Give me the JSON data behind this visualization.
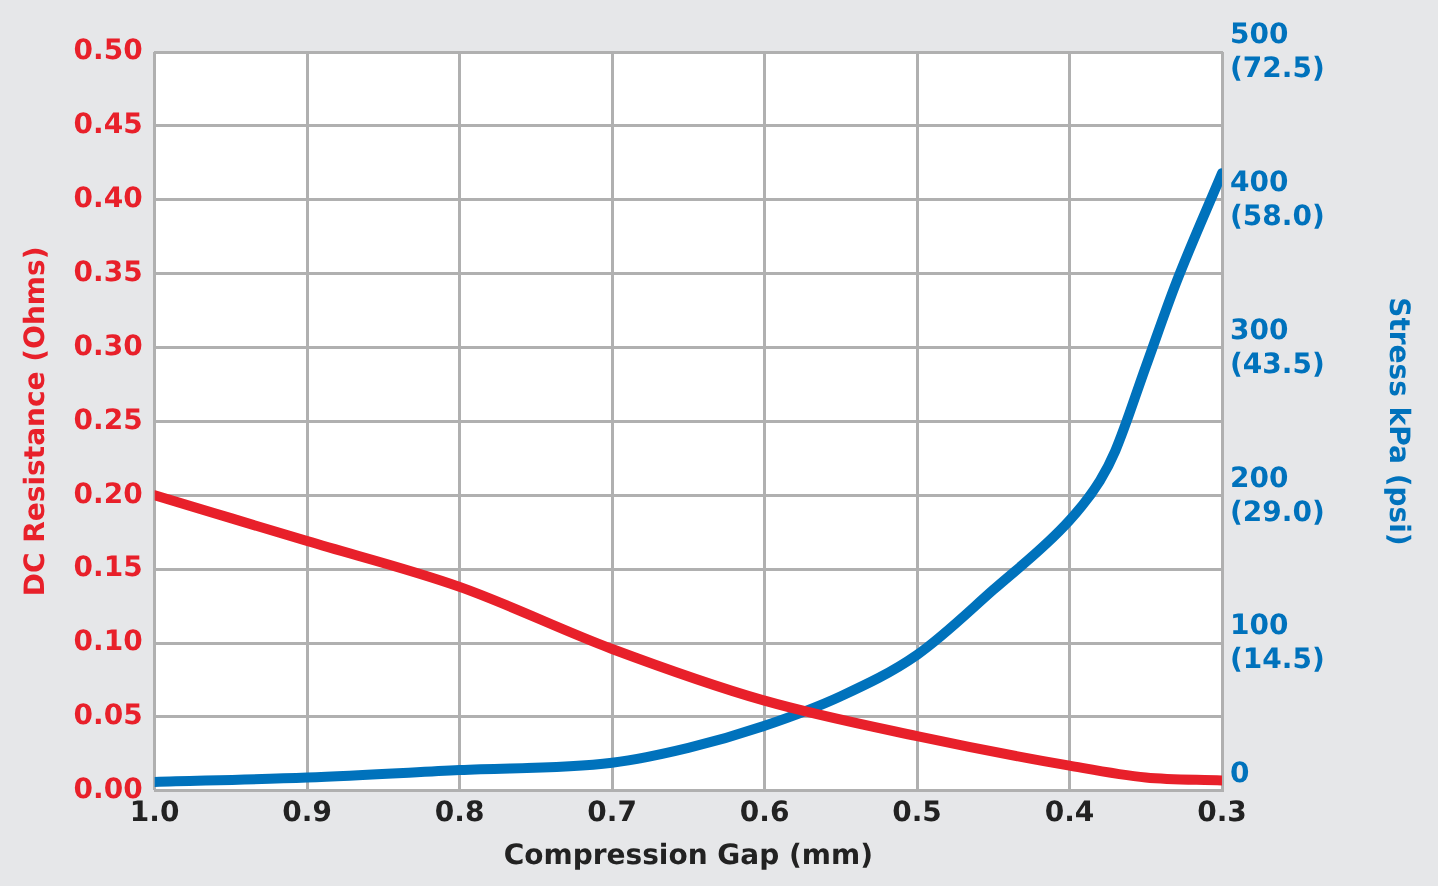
{
  "chart_data": {
    "type": "line",
    "xlabel": "Compression Gap (mm)",
    "ylabel": "DC Resistance (Ohms)",
    "y2label": "Stress kPa (psi)",
    "x": [
      1.0,
      0.9,
      0.8,
      0.7,
      0.6,
      0.5,
      0.4,
      0.35,
      0.3
    ],
    "series": [
      {
        "color": "#e8202a",
        "values": [
          0.2,
          0.169,
          0.138,
          0.096,
          0.061,
          0.037,
          0.017,
          0.009,
          0.007
        ]
      },
      {
        "color": "#0072bc",
        "axis": "y2",
        "x": [
          1.0,
          0.9,
          0.8,
          0.7,
          0.65,
          0.6,
          0.55,
          0.5,
          0.45,
          0.4,
          0.38,
          0.37,
          0.35,
          0.33,
          0.3
        ],
        "values": [
          6,
          9,
          14,
          19,
          29,
          44,
          64,
          92,
          136,
          183,
          210,
          230,
          287,
          344,
          418
        ]
      }
    ],
    "xlim": [
      1.0,
      0.3
    ],
    "xticks": [
      {
        "value": 1,
        "label": "1.0"
      },
      0.9,
      0.8,
      0.7,
      0.6,
      0.5,
      0.4,
      0.3
    ],
    "ylim": [
      0,
      0.5
    ],
    "yticks": [
      {
        "value": 0,
        "label": "0.00"
      },
      {
        "value": 0.05,
        "label": "0.05"
      },
      {
        "value": 0.1,
        "label": "0.10"
      },
      {
        "value": 0.15,
        "label": "0.15"
      },
      {
        "value": 0.2,
        "label": "0.20"
      },
      {
        "value": 0.25,
        "label": "0.25"
      },
      {
        "value": 0.3,
        "label": "0.30"
      },
      {
        "value": 0.35,
        "label": "0.35"
      },
      {
        "value": 0.4,
        "label": "0.40"
      },
      {
        "value": 0.45,
        "label": "0.45"
      },
      {
        "value": 0.5,
        "label": "0.50"
      }
    ],
    "y2lim": [
      0,
      500
    ],
    "y2ticks": [
      0,
      100,
      200,
      300,
      400,
      500
    ],
    "y3lim": [
      0,
      72.5
    ],
    "y3ticks": [
      {
        "value": 14.5,
        "label": "(14.5)"
      },
      {
        "value": 29,
        "label": "(29.0)"
      },
      {
        "value": 43.5,
        "label": "(43.5)"
      },
      {
        "value": 58,
        "label": "(58.0)"
      },
      {
        "value": 72.5,
        "label": "(72.5)"
      }
    ],
    "grid": true,
    "marker": "none",
    "line_style": "solid"
  }
}
